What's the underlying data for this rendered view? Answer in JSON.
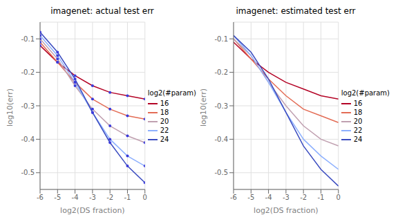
{
  "chart_data": [
    {
      "type": "line",
      "title": "imagenet: actual test err",
      "xlabel": "log2(DS fraction)",
      "ylabel": "log10(err)",
      "zlabel": "log2(#param)",
      "x": [
        -6,
        -5,
        -4,
        -3,
        -2,
        -1,
        0
      ],
      "xlim": [
        -6,
        0
      ],
      "xticks": [
        -6,
        -5,
        -4,
        -3,
        -2,
        -1,
        0
      ],
      "ylim": [
        -0.55,
        -0.05
      ],
      "yticks": [
        -0.5,
        -0.4,
        -0.3,
        -0.2,
        -0.1
      ],
      "grid": true,
      "legend": "right",
      "marker": "circle",
      "series": [
        {
          "name": "16",
          "color": "#b40426",
          "values": [
            -0.12,
            -0.17,
            -0.21,
            -0.24,
            -0.26,
            -0.27,
            -0.28
          ]
        },
        {
          "name": "18",
          "color": "#e36c55",
          "values": [
            -0.11,
            -0.17,
            -0.23,
            -0.28,
            -0.31,
            -0.33,
            -0.34
          ]
        },
        {
          "name": "20",
          "color": "#c0a0b0",
          "values": [
            -0.1,
            -0.16,
            -0.24,
            -0.31,
            -0.36,
            -0.39,
            -0.41
          ]
        },
        {
          "name": "22",
          "color": "#8db0fe",
          "values": [
            -0.09,
            -0.15,
            -0.23,
            -0.32,
            -0.4,
            -0.45,
            -0.48
          ]
        },
        {
          "name": "24",
          "color": "#3b4cc0",
          "values": [
            -0.08,
            -0.14,
            -0.22,
            -0.32,
            -0.41,
            -0.48,
            -0.53
          ]
        }
      ]
    },
    {
      "type": "line",
      "title": "imagenet: estimated test err",
      "xlabel": "log2(DS fraction)",
      "ylabel": "log10(err)",
      "zlabel": "log2(#param)",
      "x": [
        -6,
        -5,
        -4,
        -3,
        -2,
        -1,
        0
      ],
      "xlim": [
        -6,
        0
      ],
      "xticks": [
        -6,
        -5,
        -4,
        -3,
        -2,
        -1,
        0
      ],
      "ylim": [
        -0.55,
        -0.05
      ],
      "yticks": [
        -0.5,
        -0.4,
        -0.3,
        -0.2,
        -0.1
      ],
      "grid": true,
      "legend": "right",
      "marker": "none",
      "series": [
        {
          "name": "16",
          "color": "#b40426",
          "values": [
            -0.11,
            -0.16,
            -0.2,
            -0.23,
            -0.25,
            -0.27,
            -0.28
          ]
        },
        {
          "name": "18",
          "color": "#e36c55",
          "values": [
            -0.1,
            -0.16,
            -0.22,
            -0.27,
            -0.31,
            -0.33,
            -0.35
          ]
        },
        {
          "name": "20",
          "color": "#c0a0b0",
          "values": [
            -0.1,
            -0.15,
            -0.23,
            -0.3,
            -0.36,
            -0.4,
            -0.42
          ]
        },
        {
          "name": "22",
          "color": "#8db0fe",
          "values": [
            -0.09,
            -0.15,
            -0.23,
            -0.32,
            -0.4,
            -0.45,
            -0.49
          ]
        },
        {
          "name": "24",
          "color": "#3b4cc0",
          "values": [
            -0.09,
            -0.14,
            -0.22,
            -0.32,
            -0.42,
            -0.49,
            -0.54
          ]
        }
      ]
    }
  ]
}
